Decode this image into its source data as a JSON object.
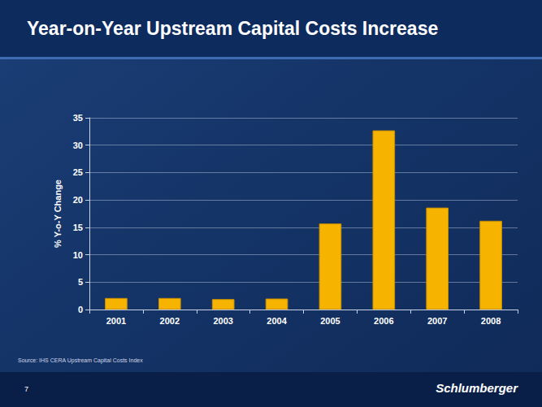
{
  "chart_data": {
    "type": "bar",
    "title": "Year-on-Year Upstream Capital Costs Increase",
    "y_label": "% Y-o-Y Change",
    "categories": [
      "2001",
      "2002",
      "2003",
      "2004",
      "2005",
      "2006",
      "2007",
      "2008"
    ],
    "values": [
      2.1,
      2.1,
      1.9,
      2.0,
      15.7,
      32.7,
      18.6,
      16.2
    ],
    "color": "#f6b400",
    "ylim": [
      0,
      35
    ],
    "yticks": [
      0,
      5,
      10,
      15,
      20,
      25,
      30,
      35
    ],
    "grid": true,
    "source": "Source: IHS CERA Upstream Capital Costs Index"
  },
  "slide": {
    "page_number": "7",
    "brand": "Schlumberger"
  }
}
